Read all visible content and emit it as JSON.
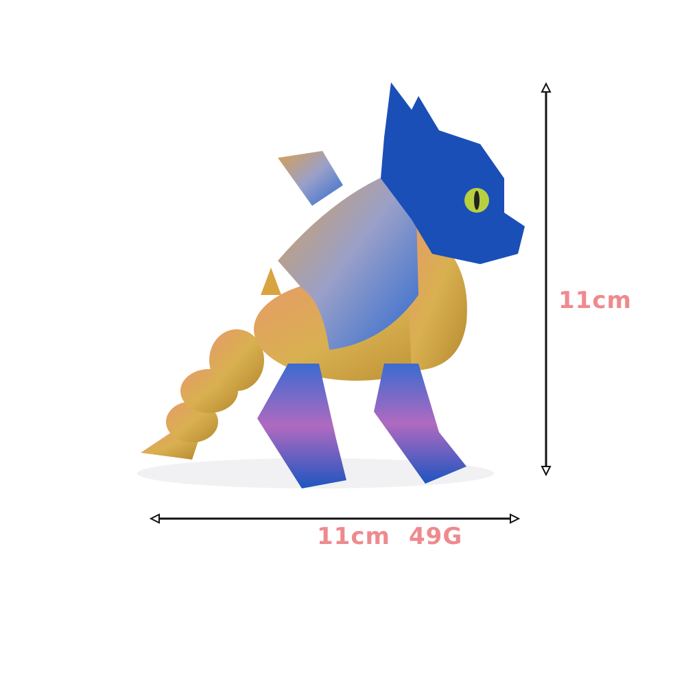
{
  "dimensions": {
    "height_label": "11cm",
    "width_label": "11cm",
    "weight_label": "49G"
  },
  "colors": {
    "label": "#ee8a8e",
    "arrow": "#111111",
    "dragon_blue": "#1a4fb8",
    "dragon_gold": "#d9a440",
    "dragon_pink": "#c86aa8"
  }
}
